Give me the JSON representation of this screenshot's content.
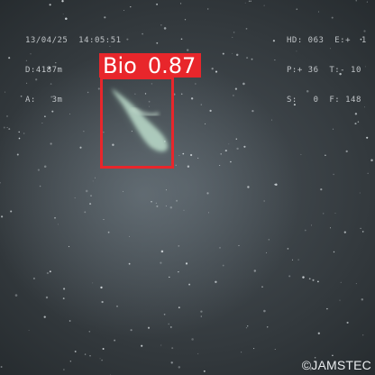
{
  "overlay": {
    "left_lines": [
      "13/04/25  14:05:51",
      "D:4187m",
      "A:   3m"
    ],
    "right_lines": [
      "HD: 063  E:+  1",
      "P:+ 36  T:- 10",
      "S:   0  F: 148"
    ]
  },
  "detection": {
    "label": "Bio",
    "score": "0.87",
    "box_color": "#e8262b"
  },
  "credit": "©JAMSTEC"
}
